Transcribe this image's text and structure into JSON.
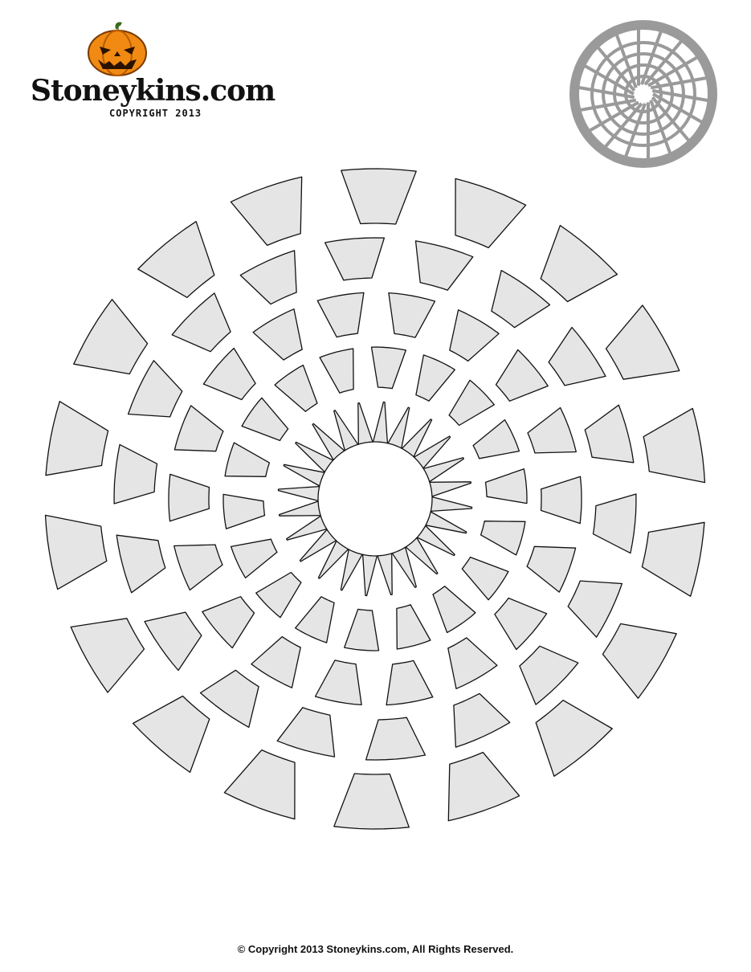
{
  "logo": {
    "brand": "Stoneykins.com",
    "copyright": "COPYRIGHT 2013",
    "icon": "pumpkin-icon"
  },
  "preview": {
    "icon": "spiderweb-preview-icon"
  },
  "stencil": {
    "icon": "spiderweb-stencil",
    "fill_color": "#e5e5e5",
    "outline_color": "#111111",
    "preview_color": "#9a9a9a"
  },
  "footer": {
    "text": "©   Copyright 2013 Stoneykins.com, All Rights Reserved."
  }
}
